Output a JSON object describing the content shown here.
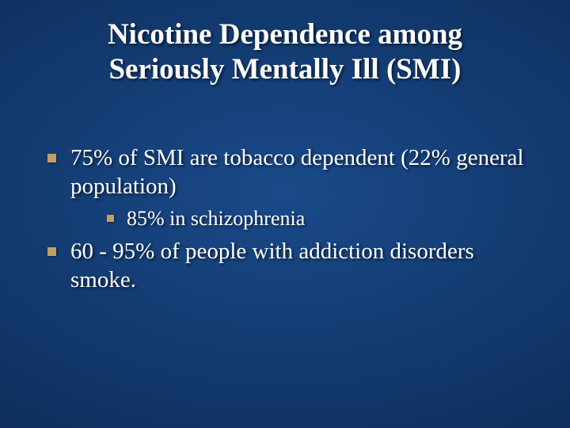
{
  "slide": {
    "background_gradient": {
      "inner": "#1a4a8a",
      "mid": "#0d2d5a",
      "outer": "#061530"
    },
    "title": "Nicotine Dependence among Seriously Mentally Ill (SMI)",
    "title_color": "#ffffff",
    "title_fontsize": 37,
    "body_color": "#ffffff",
    "bullet_marker_color": "#c0a060",
    "bullets": [
      {
        "level": 1,
        "text": "75% of SMI are tobacco dependent (22% general population)",
        "fontsize": 29
      },
      {
        "level": 2,
        "text": "85% in schizophrenia",
        "fontsize": 26
      },
      {
        "level": 1,
        "text": "60 - 95% of people with addiction disorders smoke.",
        "fontsize": 29
      }
    ]
  }
}
